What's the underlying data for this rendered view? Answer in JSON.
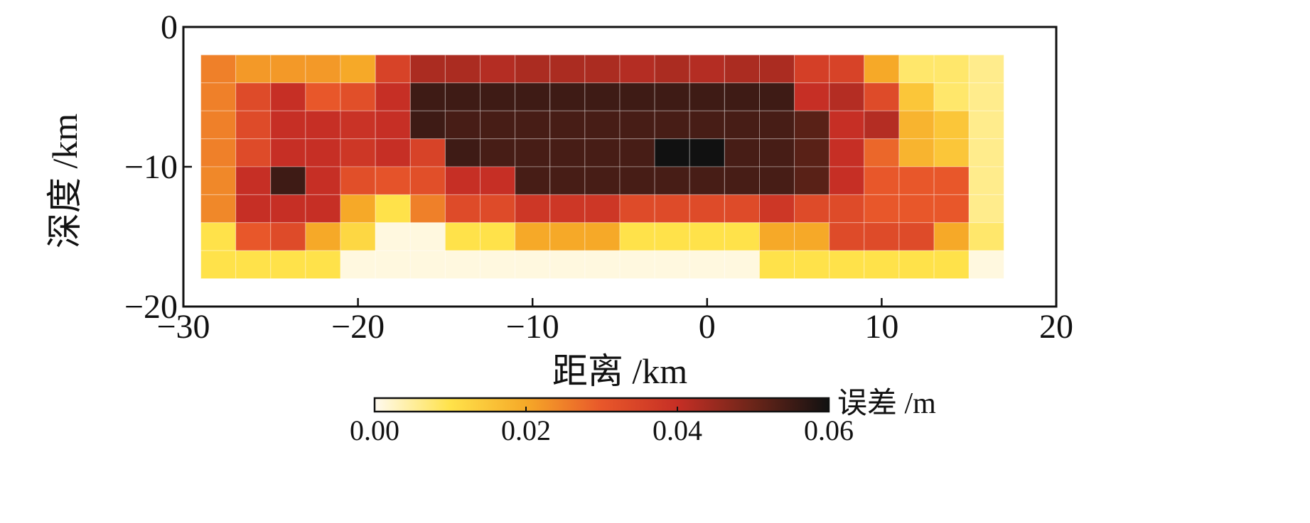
{
  "chart_data": {
    "type": "heatmap",
    "title": "",
    "xlabel": "距离 /km",
    "ylabel": "深度 /km",
    "xlim": [
      -30,
      20
    ],
    "ylim": [
      -20,
      0
    ],
    "xticks": [
      -30,
      -20,
      -10,
      0,
      10,
      20
    ],
    "yticks": [
      0,
      -10,
      -20
    ],
    "xtick_labels": [
      "−30",
      "−20",
      "−10",
      "0",
      "10",
      "20"
    ],
    "ytick_labels": [
      "0",
      "−10",
      "−20"
    ],
    "grid_x": [
      -29,
      -27,
      -25,
      -23,
      -21,
      -19,
      -17,
      -15,
      -13,
      -11,
      -9,
      -7,
      -5,
      -3,
      -1,
      1,
      3,
      5,
      7,
      9,
      11,
      13,
      15,
      17
    ],
    "grid_y": [
      -2,
      -4,
      -6,
      -8,
      -10,
      -12,
      -14,
      -16,
      -18
    ],
    "z": [
      [
        0.025,
        0.022,
        0.022,
        0.022,
        0.02,
        0.035,
        0.043,
        0.043,
        0.042,
        0.043,
        0.043,
        0.043,
        0.042,
        0.043,
        0.042,
        0.043,
        0.043,
        0.036,
        0.035,
        0.02,
        0.008,
        0.008,
        0.006
      ],
      [
        0.025,
        0.033,
        0.04,
        0.03,
        0.032,
        0.04,
        0.055,
        0.055,
        0.055,
        0.055,
        0.055,
        0.055,
        0.055,
        0.055,
        0.055,
        0.055,
        0.055,
        0.04,
        0.042,
        0.033,
        0.015,
        0.008,
        0.006
      ],
      [
        0.025,
        0.033,
        0.04,
        0.04,
        0.039,
        0.04,
        0.055,
        0.054,
        0.054,
        0.054,
        0.054,
        0.054,
        0.054,
        0.054,
        0.054,
        0.054,
        0.054,
        0.052,
        0.04,
        0.042,
        0.018,
        0.015,
        0.006
      ],
      [
        0.025,
        0.033,
        0.04,
        0.04,
        0.038,
        0.04,
        0.035,
        0.055,
        0.054,
        0.054,
        0.054,
        0.054,
        0.054,
        0.06,
        0.06,
        0.054,
        0.054,
        0.052,
        0.04,
        0.028,
        0.018,
        0.015,
        0.006
      ],
      [
        0.024,
        0.04,
        0.055,
        0.04,
        0.032,
        0.031,
        0.032,
        0.04,
        0.04,
        0.054,
        0.054,
        0.054,
        0.054,
        0.054,
        0.054,
        0.054,
        0.054,
        0.052,
        0.04,
        0.03,
        0.03,
        0.03,
        0.006
      ],
      [
        0.024,
        0.04,
        0.04,
        0.04,
        0.02,
        0.01,
        0.025,
        0.033,
        0.033,
        0.038,
        0.038,
        0.038,
        0.033,
        0.033,
        0.033,
        0.033,
        0.038,
        0.033,
        0.033,
        0.03,
        0.03,
        0.03,
        0.006
      ],
      [
        0.01,
        0.03,
        0.033,
        0.02,
        0.012,
        0.001,
        0.001,
        0.01,
        0.01,
        0.02,
        0.02,
        0.02,
        0.01,
        0.01,
        0.01,
        0.01,
        0.02,
        0.02,
        0.033,
        0.033,
        0.033,
        0.02,
        0.008
      ],
      [
        0.01,
        0.01,
        0.01,
        0.01,
        0.001,
        0.001,
        0.001,
        0.001,
        0.001,
        0.001,
        0.001,
        0.001,
        0.001,
        0.001,
        0.001,
        0.001,
        0.01,
        0.01,
        0.01,
        0.01,
        0.01,
        0.01,
        0.001
      ]
    ],
    "colorbar": {
      "label": "误差 /m",
      "range": [
        0.0,
        0.06
      ],
      "ticks": [
        0.0,
        0.02,
        0.04,
        0.06
      ],
      "tick_labels": [
        "0.00",
        "0.02",
        "0.04",
        "0.06"
      ],
      "colormap": [
        "#fffaf0",
        "#ffe24a",
        "#f6a928",
        "#e8572a",
        "#c62f25",
        "#6b2519",
        "#111111"
      ],
      "orientation": "horizontal",
      "placement": "bottom"
    },
    "legend": "none",
    "grid": false
  }
}
